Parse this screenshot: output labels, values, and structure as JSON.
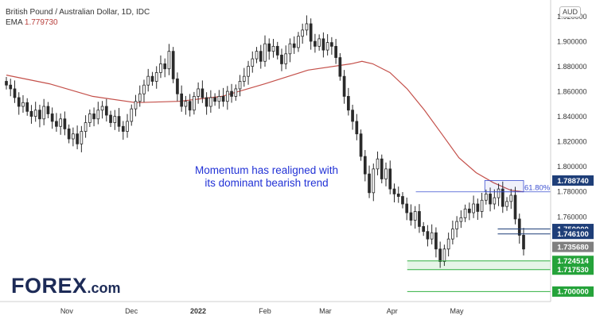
{
  "legend": {
    "pair": "British Pound / Australian Dollar, 1D, IDC",
    "ema_label": "EMA",
    "ema_value": "1.779730"
  },
  "currency": "AUD",
  "annotation": [
    "Momentum has realigned with",
    "its dominant bearish trend"
  ],
  "fib_label": "61.80%",
  "brand": {
    "name_a": "F",
    "name_o": "O",
    "name_b": "REX",
    "suffix": ".com"
  },
  "colors": {
    "candle": "#2a2a2a",
    "ema": "#c4504a",
    "fib": "#3b4fd0",
    "resistance_tag": "#1e3e78",
    "current_tag": "#808080",
    "support_tag": "#25a33a",
    "support_line": "#30b040"
  },
  "chart_data": {
    "type": "candlestick",
    "title": "British Pound / Australian Dollar, 1D, IDC",
    "ylim": [
      1.692,
      1.933
    ],
    "y_ticks": [
      "1.920000",
      "1.900000",
      "1.880000",
      "1.860000",
      "1.840000",
      "1.820000",
      "1.800000",
      "1.780000",
      "1.760000"
    ],
    "x_ticks": [
      {
        "label": "Nov",
        "day": 28
      },
      {
        "label": "Dec",
        "day": 58
      },
      {
        "label": "2022",
        "day": 89
      },
      {
        "label": "Feb",
        "day": 120
      },
      {
        "label": "Mar",
        "day": 148
      },
      {
        "label": "Apr",
        "day": 179
      },
      {
        "label": "May",
        "day": 209
      }
    ],
    "x_range_days": [
      0,
      245
    ],
    "candles_close": [
      1.865,
      1.862,
      1.855,
      1.848,
      1.851,
      1.844,
      1.84,
      1.845,
      1.838,
      1.848,
      1.842,
      1.836,
      1.832,
      1.838,
      1.83,
      1.822,
      1.826,
      1.818,
      1.828,
      1.835,
      1.842,
      1.838,
      1.845,
      1.848,
      1.841,
      1.835,
      1.84,
      1.832,
      1.828,
      1.836,
      1.846,
      1.852,
      1.858,
      1.865,
      1.872,
      1.868,
      1.875,
      1.882,
      1.878,
      1.892,
      1.87,
      1.858,
      1.848,
      1.852,
      1.845,
      1.856,
      1.862,
      1.855,
      1.848,
      1.855,
      1.852,
      1.856,
      1.852,
      1.86,
      1.856,
      1.862,
      1.868,
      1.872,
      1.88,
      1.886,
      1.892,
      1.884,
      1.898,
      1.892,
      1.896,
      1.889,
      1.882,
      1.89,
      1.898,
      1.895,
      1.904,
      1.909,
      1.914,
      1.9,
      1.896,
      1.902,
      1.893,
      1.899,
      1.896,
      1.887,
      1.872,
      1.856,
      1.845,
      1.836,
      1.826,
      1.808,
      1.794,
      1.779,
      1.798,
      1.806,
      1.79,
      1.798,
      1.782,
      1.778,
      1.776,
      1.77,
      1.763,
      1.757,
      1.764,
      1.752,
      1.748,
      1.742,
      1.747,
      1.734,
      1.724,
      1.734,
      1.742,
      1.75,
      1.756,
      1.759,
      1.766,
      1.763,
      1.77,
      1.764,
      1.773,
      1.778,
      1.77,
      1.775,
      1.782,
      1.768,
      1.772,
      1.777,
      1.758,
      1.745,
      1.734
    ],
    "ema": [
      [
        0,
        1.873
      ],
      [
        20,
        1.866
      ],
      [
        40,
        1.856
      ],
      [
        60,
        1.851
      ],
      [
        80,
        1.852
      ],
      [
        100,
        1.856
      ],
      [
        120,
        1.866
      ],
      [
        140,
        1.877
      ],
      [
        160,
        1.882
      ],
      [
        165,
        1.884
      ],
      [
        170,
        1.882
      ],
      [
        178,
        1.875
      ],
      [
        186,
        1.862
      ],
      [
        194,
        1.845
      ],
      [
        202,
        1.826
      ],
      [
        210,
        1.807
      ],
      [
        218,
        1.795
      ],
      [
        226,
        1.787
      ],
      [
        234,
        1.781
      ],
      [
        240,
        1.7797
      ]
    ],
    "fib_level": {
      "value": 1.7797,
      "from_day": 190,
      "to_day": 240,
      "label": "61.80%"
    },
    "fib_box": {
      "top": 1.78874,
      "bottom": 1.7797,
      "from_day": 222,
      "to_day": 240
    },
    "levels": [
      {
        "value": 1.78874,
        "label": "1.788740",
        "kind": "resistance"
      },
      {
        "value": 1.75,
        "label": "1.750000",
        "kind": "resistance"
      },
      {
        "value": 1.7461,
        "label": "1.746100",
        "kind": "resistance"
      },
      {
        "value": 1.73568,
        "label": "1.735680",
        "kind": "current"
      },
      {
        "value": 1.724514,
        "label": "1.724514",
        "kind": "support"
      },
      {
        "value": 1.71753,
        "label": "1.717530",
        "kind": "support"
      },
      {
        "value": 1.7,
        "label": "1.700000",
        "kind": "support"
      }
    ]
  }
}
